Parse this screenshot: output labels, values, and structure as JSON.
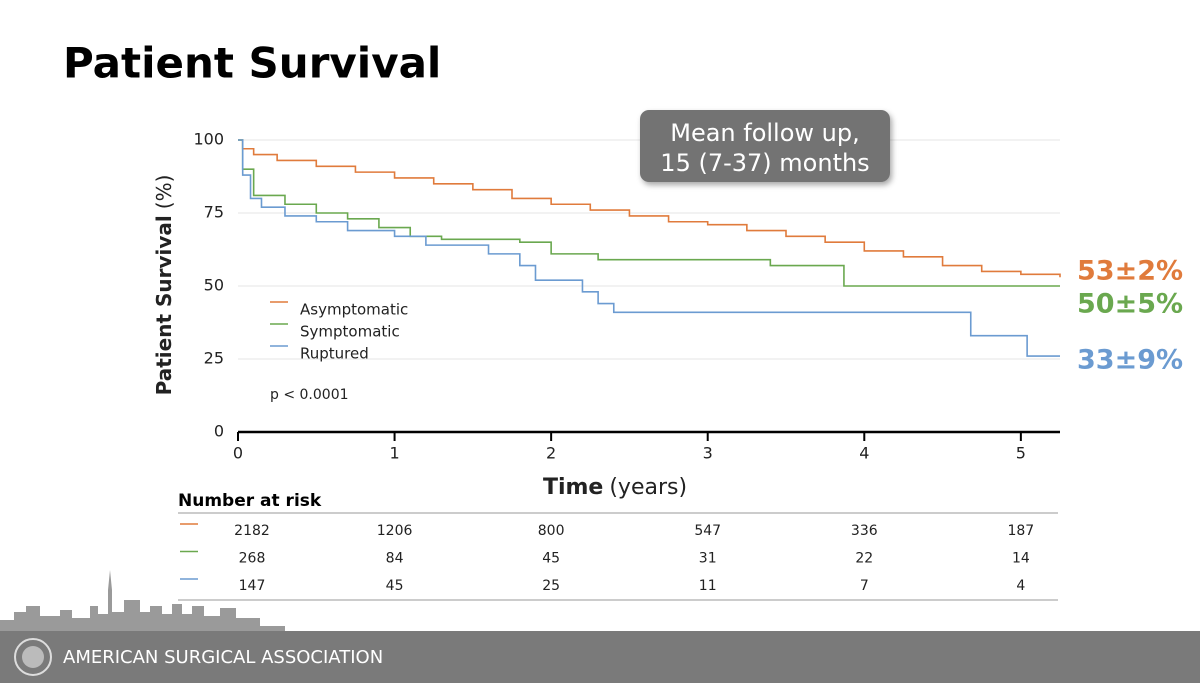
{
  "chart_data": {
    "type": "step",
    "title": "Patient Survival",
    "y_label": "Patient Survival",
    "y_label_unit": "(%)",
    "x_label": "Time",
    "x_label_unit": "(years)",
    "xlim": [
      0,
      5.25
    ],
    "xticks": [
      0,
      1,
      2,
      3,
      4,
      5
    ],
    "ylim": [
      0,
      100
    ],
    "yticks": [
      0,
      25,
      50,
      75,
      100
    ],
    "grid": true,
    "series": [
      {
        "name": "Asymptomatic",
        "color": "#e07b3c",
        "x": [
          0,
          0.03,
          0.1,
          0.25,
          0.5,
          0.75,
          1,
          1.25,
          1.5,
          1.75,
          2,
          2.25,
          2.5,
          2.75,
          3,
          3.25,
          3.5,
          3.75,
          4,
          4.25,
          4.5,
          4.75,
          5,
          5.25
        ],
        "values": [
          100,
          97,
          95,
          93,
          91,
          89,
          87,
          85,
          83,
          80,
          78,
          76,
          74,
          72,
          71,
          69,
          67,
          65,
          62,
          60,
          57,
          55,
          54,
          53
        ]
      },
      {
        "name": "Symptomatic",
        "color": "#6aa84f",
        "x": [
          0,
          0.03,
          0.1,
          0.3,
          0.5,
          0.7,
          0.9,
          1.1,
          1.3,
          1.8,
          2,
          2.3,
          3.4,
          3.87,
          5.25
        ],
        "values": [
          100,
          90,
          81,
          78,
          75,
          73,
          70,
          67,
          66,
          65,
          61,
          59,
          57,
          50,
          50
        ]
      },
      {
        "name": "Ruptured",
        "color": "#6b9bd1",
        "x": [
          0,
          0.03,
          0.08,
          0.15,
          0.3,
          0.5,
          0.7,
          1,
          1.2,
          1.6,
          1.8,
          1.9,
          2.2,
          2.3,
          2.4,
          4.68,
          5.04,
          5.25
        ],
        "values": [
          100,
          88,
          80,
          77,
          74,
          72,
          69,
          67,
          64,
          61,
          57,
          52,
          48,
          44,
          41,
          33,
          26,
          26
        ]
      }
    ],
    "end_labels": [
      "53±2%",
      "50±5%",
      "33±9%"
    ],
    "annotation": [
      "Mean follow up,",
      "15 (7-37) months"
    ],
    "p_value": "p < 0.0001",
    "risk_table": {
      "title": "Number at risk",
      "rows": [
        [
          2182,
          1206,
          800,
          547,
          336,
          187
        ],
        [
          268,
          84,
          45,
          31,
          22,
          14
        ],
        [
          147,
          45,
          25,
          11,
          7,
          4
        ]
      ]
    }
  },
  "footer": {
    "organization": "AMERICAN SURGICAL ASSOCIATION"
  }
}
